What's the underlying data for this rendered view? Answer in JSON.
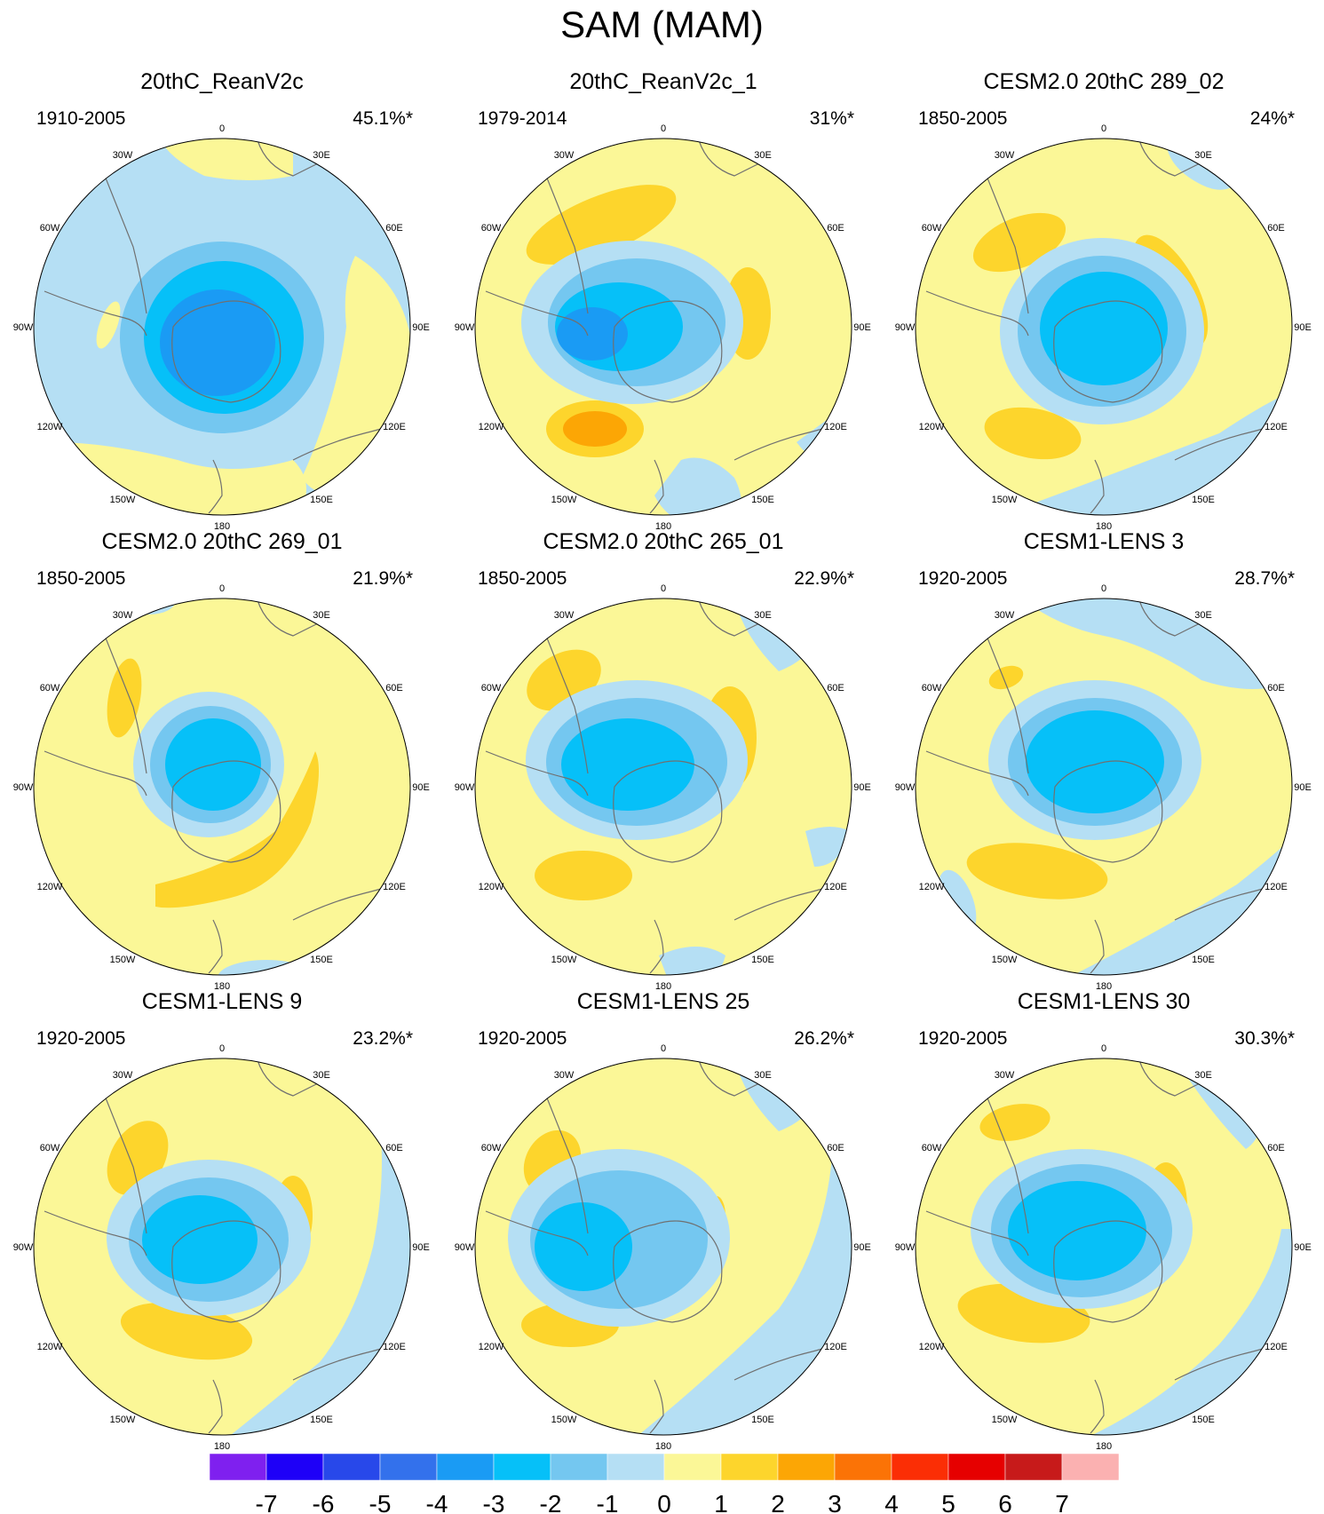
{
  "title": "SAM (MAM)",
  "colors": {
    "ocean_neg1": "#b5dff4",
    "neg2": "#74c7f0",
    "neg3": "#06c0f8",
    "neg4": "#1a9bf4",
    "neg5": "#3379ec",
    "pos1": "#fbf797",
    "pos2": "#fdd52c",
    "pos3": "#fca605",
    "coast": "#707070"
  },
  "lon_labels": [
    "0",
    "30E",
    "60E",
    "90E",
    "120E",
    "150E",
    "180",
    "150W",
    "120W",
    "90W",
    "60W",
    "30W"
  ],
  "panels": [
    {
      "title": "20thC_ReanV2c",
      "period": "1910-2005",
      "pct": "45.1%*"
    },
    {
      "title": "20thC_ReanV2c_1",
      "period": "1979-2014",
      "pct": "31%*"
    },
    {
      "title": "CESM2.0 20thC 289_02",
      "period": "1850-2005",
      "pct": "24%*"
    },
    {
      "title": "CESM2.0 20thC 269_01",
      "period": "1850-2005",
      "pct": "21.9%*"
    },
    {
      "title": "CESM2.0 20thC 265_01",
      "period": "1850-2005",
      "pct": "22.9%*"
    },
    {
      "title": "CESM1-LENS 3",
      "period": "1920-2005",
      "pct": "28.7%*"
    },
    {
      "title": "CESM1-LENS 9",
      "period": "1920-2005",
      "pct": "23.2%*"
    },
    {
      "title": "CESM1-LENS 25",
      "period": "1920-2005",
      "pct": "26.2%*"
    },
    {
      "title": "CESM1-LENS 30",
      "period": "1920-2005",
      "pct": "30.3%*"
    }
  ],
  "colorbar": {
    "labels": [
      "-7",
      "-6",
      "-5",
      "-4",
      "-3",
      "-2",
      "-1",
      "0",
      "1",
      "2",
      "3",
      "4",
      "5",
      "6",
      "7"
    ],
    "colors": [
      "#7f20ef",
      "#1e00f7",
      "#2848ea",
      "#3371ec",
      "#1a9bf4",
      "#06c0f8",
      "#74c7f0",
      "#b5dff4",
      "#fbf797",
      "#fdd52c",
      "#fca605",
      "#fb7306",
      "#fb2e05",
      "#e60000",
      "#c71a1a",
      "#fbb1b1"
    ]
  }
}
